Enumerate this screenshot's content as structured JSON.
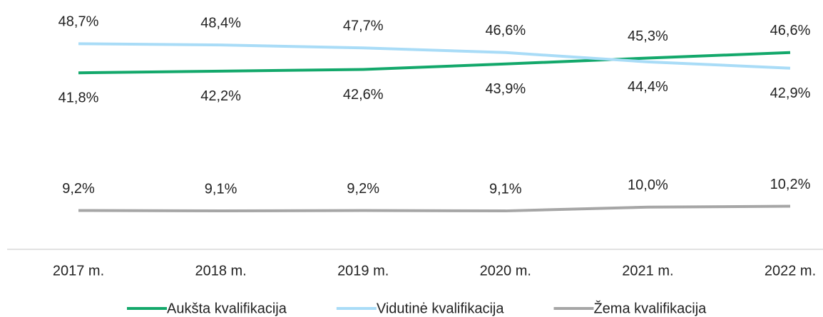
{
  "chart_data": {
    "type": "line",
    "categories": [
      "2017 m.",
      "2018 m.",
      "2019 m.",
      "2020 m.",
      "2021 m.",
      "2022 m."
    ],
    "series": [
      {
        "name": "Aukšta kvalifikacija",
        "color": "#13a86b",
        "values": [
          41.8,
          42.2,
          42.6,
          43.9,
          45.3,
          46.6
        ],
        "value_labels": [
          "41,8%",
          "42,2%",
          "42,6%",
          "43,9%",
          "45,3%",
          "46,6%"
        ]
      },
      {
        "name": "Vidutinė kvalifikacija",
        "color": "#a9dcf7",
        "values": [
          48.7,
          48.4,
          47.7,
          46.6,
          44.4,
          42.9
        ],
        "value_labels": [
          "48,7%",
          "48,4%",
          "47,7%",
          "46,6%",
          "44,4%",
          "42,9%"
        ]
      },
      {
        "name": "Žema kvalifikacija",
        "color": "#a6a6a6",
        "values": [
          9.2,
          9.1,
          9.2,
          9.1,
          10.0,
          10.2
        ],
        "value_labels": [
          "9,2%",
          "9,1%",
          "9,2%",
          "9,1%",
          "10,0%",
          "10,2%"
        ]
      }
    ],
    "ylim": [
      0,
      55
    ]
  }
}
